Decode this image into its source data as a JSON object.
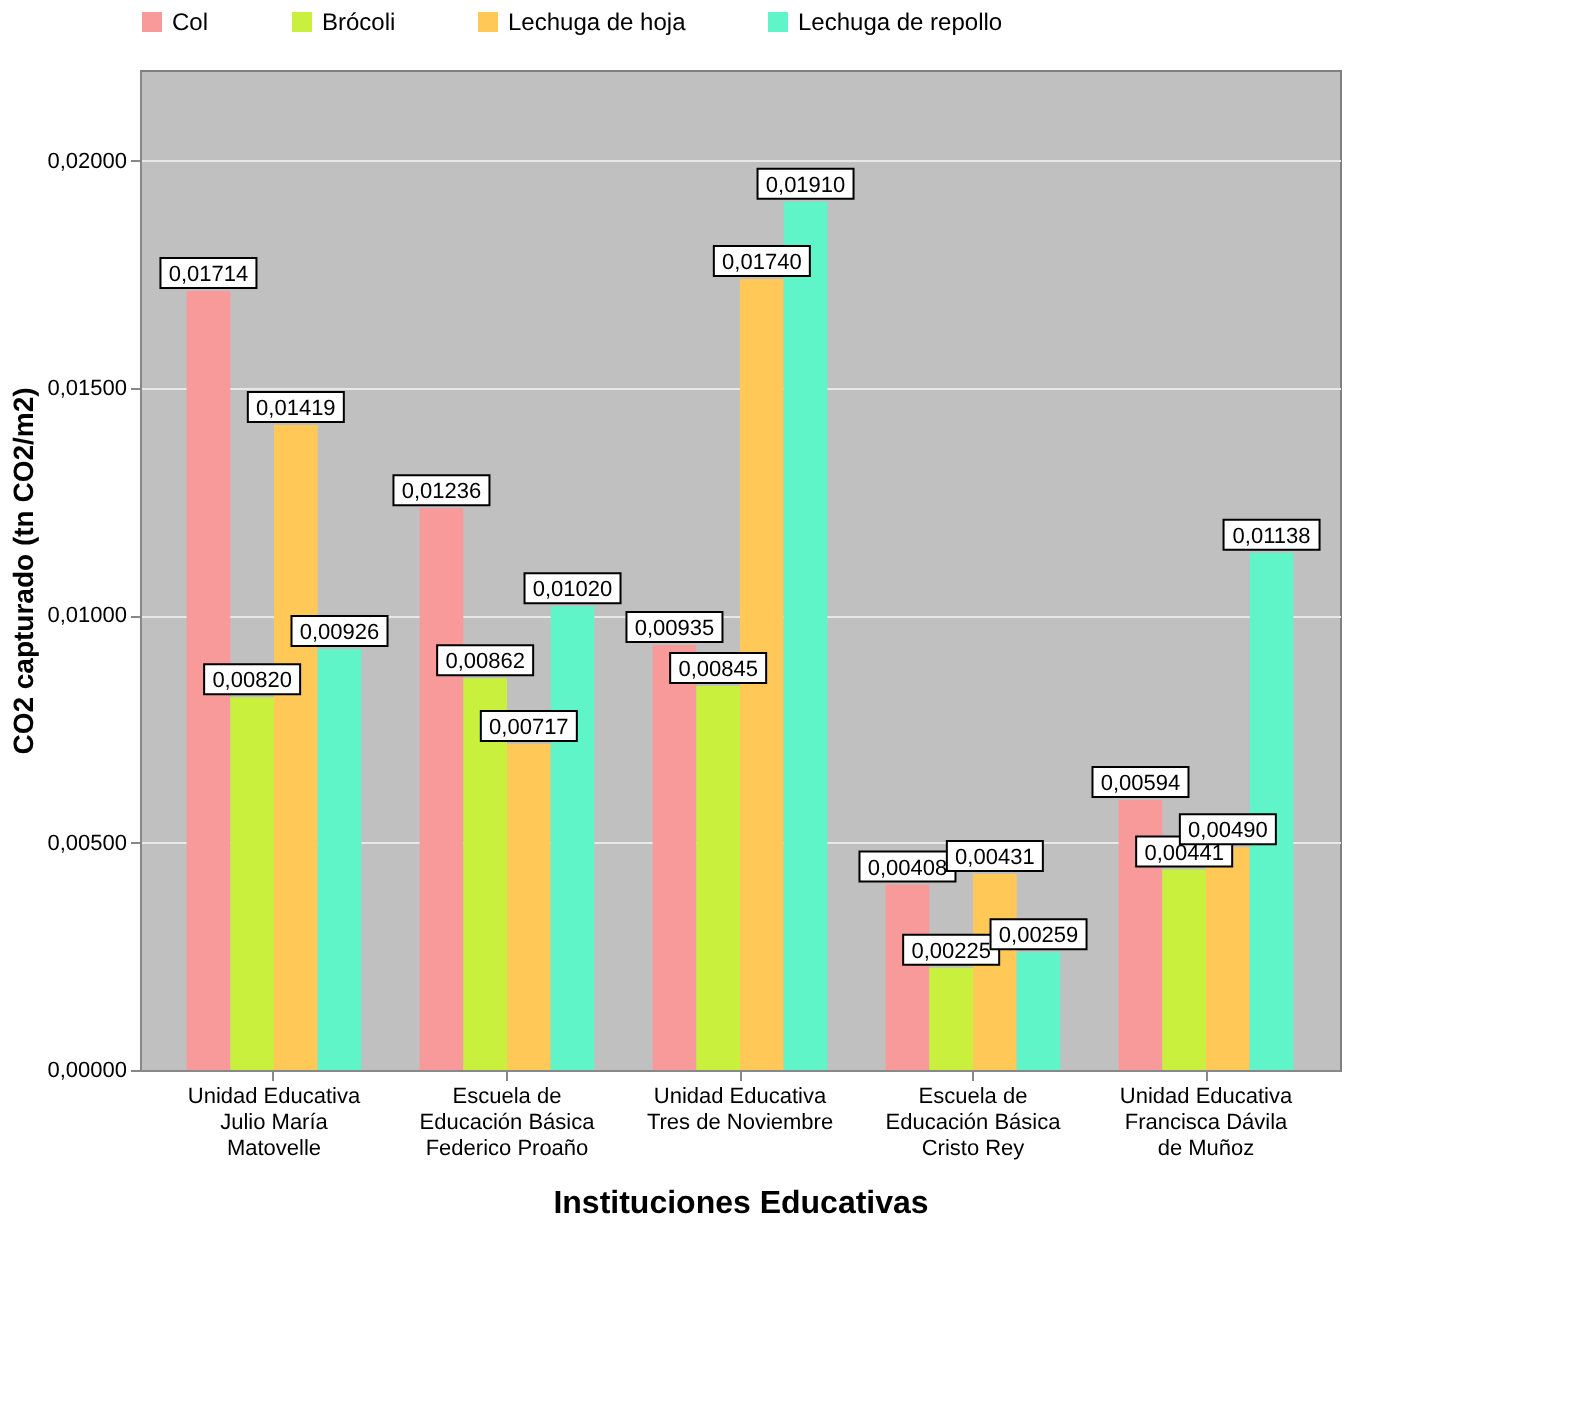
{
  "chart_data": {
    "type": "bar",
    "xlabel": "Instituciones Educativas",
    "ylabel": "CO2 capturado (tn CO2/m2)",
    "categories": [
      "Unidad Educativa Julio María Matovelle",
      "Escuela de Educación Básica Federico Proaño",
      "Unidad Educativa Tres de Noviembre",
      "Escuela de Educación Básica Cristo Rey",
      "Unidad Educativa Francisca Dávila de Muñoz"
    ],
    "series": [
      {
        "name": "Col",
        "color": "#f89a9a",
        "values": [
          0.01714,
          0.01236,
          0.00935,
          0.00408,
          0.00594
        ],
        "value_labels": [
          "0,01714",
          "0,01236",
          "0,00935",
          "0,00408",
          "0,00594"
        ]
      },
      {
        "name": "Brócoli",
        "color": "#c8f03c",
        "values": [
          0.0082,
          0.00862,
          0.00845,
          0.00225,
          0.00441
        ],
        "value_labels": [
          "0,00820",
          "0,00862",
          "0,00845",
          "0,00225",
          "0,00441"
        ]
      },
      {
        "name": "Lechuga de hoja",
        "color": "#ffc857",
        "values": [
          0.01419,
          0.00717,
          0.0174,
          0.00431,
          0.0049
        ],
        "value_labels": [
          "0,01419",
          "0,00717",
          "0,01740",
          "0,00431",
          "0,00490"
        ]
      },
      {
        "name": "Lechuga de repollo",
        "color": "#5ff5c8",
        "values": [
          0.00926,
          0.0102,
          0.0191,
          0.00259,
          0.01138
        ],
        "value_labels": [
          "0,00926",
          "0,01020",
          "0,01910",
          "0,00259",
          "0,01138"
        ]
      }
    ],
    "ylim": [
      0,
      0.022
    ],
    "yticks": [
      {
        "value": 0,
        "label": "0,00000"
      },
      {
        "value": 0.005,
        "label": "0,00500"
      },
      {
        "value": 0.01,
        "label": "0,01000"
      },
      {
        "value": 0.015,
        "label": "0,01500"
      },
      {
        "value": 0.02,
        "label": "0,02000"
      }
    ],
    "grid": "y",
    "legend": "top"
  }
}
